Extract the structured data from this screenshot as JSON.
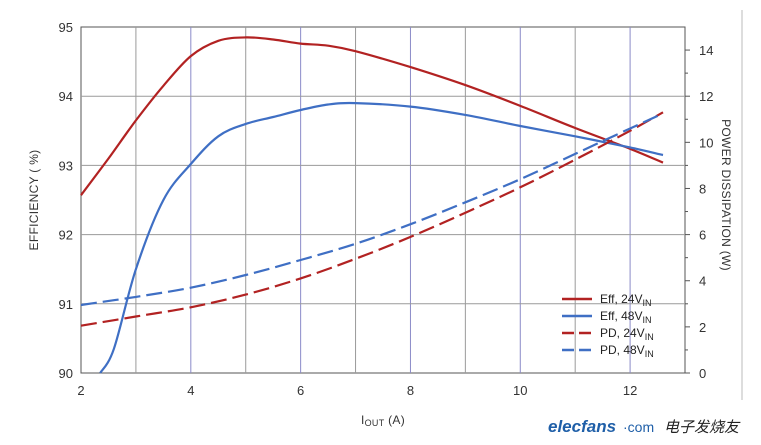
{
  "chart_data": {
    "type": "line",
    "xlabel_main": "I",
    "xlabel_sub": "OUT",
    "xlabel_unit": " (A)",
    "ylabel_left": "EFFICIENCY ( %)",
    "ylabel_right": "POWER DISSIPATION (W)",
    "xlim": [
      2,
      13
    ],
    "ylim_left": [
      90,
      95
    ],
    "ylim_right": [
      0,
      15
    ],
    "x_ticks": [
      "2",
      "4",
      "6",
      "8",
      "10",
      "12"
    ],
    "y_left_ticks": [
      "90",
      "91",
      "92",
      "93",
      "94",
      "95"
    ],
    "y_right_ticks": [
      "0",
      "2",
      "4",
      "6",
      "8",
      "10",
      "12",
      "14"
    ],
    "grid": true,
    "legend_position": "bottom-right",
    "series": [
      {
        "legend_main": "Eff, 24V",
        "legend_sub": "IN",
        "axis": "left",
        "color": "#b22222",
        "dashed": false,
        "x": [
          2,
          2.5,
          3,
          3.5,
          4,
          4.5,
          5,
          5.5,
          6,
          6.5,
          7,
          8,
          9,
          10,
          11,
          12,
          12.6
        ],
        "y": [
          92.57,
          93.1,
          93.65,
          94.15,
          94.58,
          94.8,
          94.85,
          94.82,
          94.76,
          94.73,
          94.65,
          94.42,
          94.16,
          93.86,
          93.54,
          93.24,
          93.04
        ]
      },
      {
        "legend_main": "Eff, 48V",
        "legend_sub": "IN",
        "axis": "left",
        "color": "#3f6fc4",
        "dashed": false,
        "x": [
          2.35,
          2.6,
          3,
          3.5,
          4,
          4.5,
          5,
          5.5,
          6,
          6.5,
          7,
          8,
          9,
          10,
          11,
          12,
          12.6
        ],
        "y": [
          90.0,
          90.35,
          91.5,
          92.5,
          93.02,
          93.42,
          93.6,
          93.7,
          93.8,
          93.88,
          93.9,
          93.85,
          93.73,
          93.57,
          93.42,
          93.26,
          93.15
        ]
      },
      {
        "legend_main": "PD, 24V",
        "legend_sub": "IN",
        "axis": "right",
        "color": "#b22222",
        "dashed": true,
        "x": [
          2,
          3,
          4,
          5,
          6,
          7,
          8,
          9,
          10,
          11,
          12,
          12.6
        ],
        "y": [
          2.05,
          2.45,
          2.85,
          3.4,
          4.1,
          4.95,
          5.9,
          6.95,
          8.05,
          9.25,
          10.5,
          11.3
        ]
      },
      {
        "legend_main": "PD, 48V",
        "legend_sub": "IN",
        "axis": "right",
        "color": "#3f6fc4",
        "dashed": true,
        "x": [
          2,
          3,
          4,
          5,
          6,
          7,
          8,
          9,
          10,
          11,
          12,
          12.6
        ],
        "y": [
          2.95,
          3.3,
          3.7,
          4.25,
          4.9,
          5.6,
          6.45,
          7.4,
          8.4,
          9.5,
          10.6,
          11.25
        ]
      }
    ]
  },
  "watermark": {
    "brand": "elecfans",
    "dot_com": "·com",
    "cn_text": "电子发烧友"
  }
}
